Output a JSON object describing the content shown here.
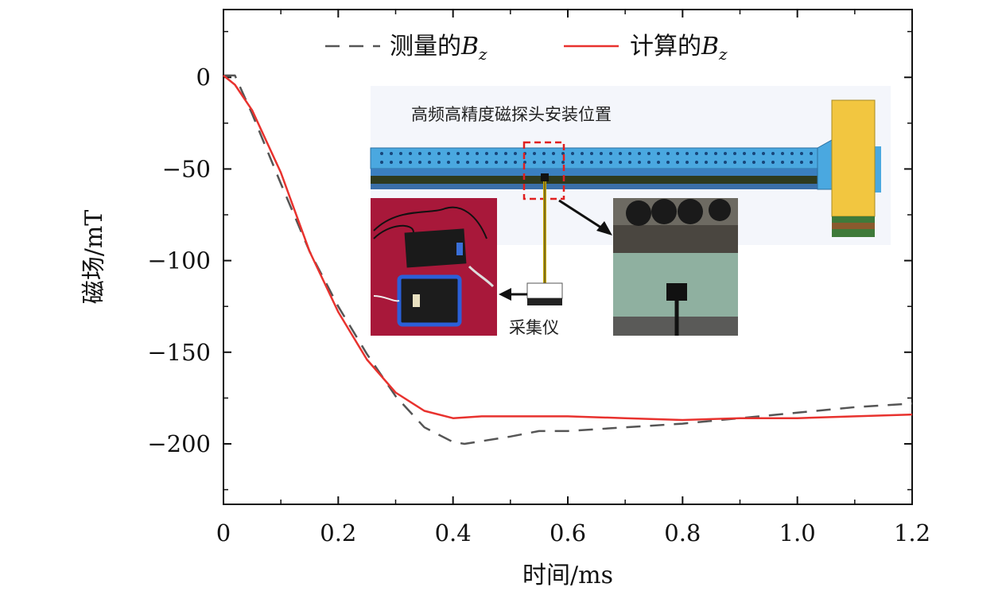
{
  "chart_data": {
    "type": "line",
    "xlabel": "时间/ms",
    "ylabel": "磁场/mT",
    "xlim": [
      0,
      1.2
    ],
    "ylim": [
      -233,
      37
    ],
    "xticks": [
      "0",
      "0.2",
      "0.4",
      "0.6",
      "0.8",
      "1.0",
      "1.2"
    ],
    "xtick_values": [
      0,
      0.2,
      0.4,
      0.6,
      0.8,
      1.0,
      1.2
    ],
    "yticks": [
      "0",
      "−50",
      "−100",
      "−150",
      "−200"
    ],
    "ytick_values": [
      0,
      -50,
      -100,
      -150,
      -200
    ],
    "legend_position": "top",
    "series": [
      {
        "name": "测量的Bz",
        "legend_prefix": "测量的",
        "legend_var": "B",
        "legend_sub": "z",
        "color": "#555555",
        "style": "dashed",
        "points": [
          [
            0,
            1
          ],
          [
            0.02,
            1
          ],
          [
            0.05,
            -20
          ],
          [
            0.1,
            -58
          ],
          [
            0.15,
            -95
          ],
          [
            0.2,
            -125
          ],
          [
            0.25,
            -151
          ],
          [
            0.3,
            -174
          ],
          [
            0.35,
            -191
          ],
          [
            0.4,
            -199
          ],
          [
            0.42,
            -200
          ],
          [
            0.5,
            -196
          ],
          [
            0.55,
            -193
          ],
          [
            0.6,
            -193
          ],
          [
            0.7,
            -191
          ],
          [
            0.8,
            -189
          ],
          [
            0.9,
            -186
          ],
          [
            1.0,
            -183
          ],
          [
            1.1,
            -180
          ],
          [
            1.2,
            -178
          ]
        ]
      },
      {
        "name": "计算的Bz",
        "legend_prefix": "计算的",
        "legend_var": "B",
        "legend_sub": "z",
        "color": "#e8322e",
        "style": "solid",
        "points": [
          [
            0,
            1
          ],
          [
            0.02,
            -4
          ],
          [
            0.05,
            -18
          ],
          [
            0.1,
            -52
          ],
          [
            0.15,
            -95
          ],
          [
            0.2,
            -128
          ],
          [
            0.25,
            -154
          ],
          [
            0.3,
            -172
          ],
          [
            0.35,
            -182
          ],
          [
            0.4,
            -186
          ],
          [
            0.45,
            -185
          ],
          [
            0.5,
            -185
          ],
          [
            0.6,
            -185
          ],
          [
            0.7,
            -186
          ],
          [
            0.8,
            -187
          ],
          [
            0.9,
            -186
          ],
          [
            1.0,
            -186
          ],
          [
            1.1,
            -185
          ],
          [
            1.2,
            -184
          ]
        ]
      }
    ],
    "inset": {
      "title": "高频高精度磁探头安装位置",
      "device_label": "采集仪"
    }
  }
}
